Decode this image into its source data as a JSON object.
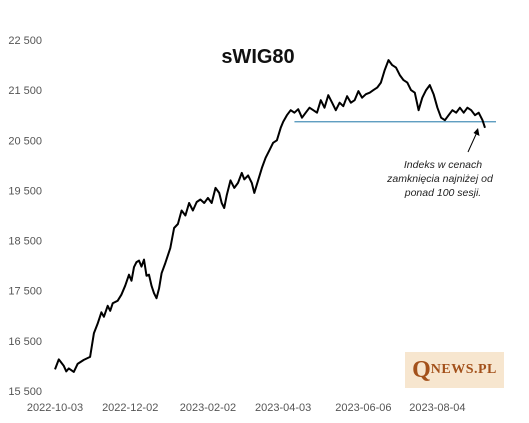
{
  "chart_data": {
    "type": "line",
    "title": "sWIG80",
    "xlabel": "",
    "ylabel": "",
    "ylim": [
      15500,
      22500
    ],
    "y_ticks": [
      15500,
      16500,
      17500,
      18500,
      19500,
      20500,
      21500,
      22500
    ],
    "y_tick_labels": [
      "15 500",
      "16 500",
      "17 500",
      "18 500",
      "19 500",
      "20 500",
      "21 500",
      "22 500"
    ],
    "x_tick_labels": [
      "2022-10-03",
      "2022-12-02",
      "2023-02-02",
      "2023-04-03",
      "2023-06-06",
      "2023-08-04"
    ],
    "grid": false,
    "series": [
      {
        "color": "#000000",
        "points": [
          [
            "2022-10-03",
            15930
          ],
          [
            "2022-10-06",
            16130
          ],
          [
            "2022-10-10",
            16000
          ],
          [
            "2022-10-12",
            15890
          ],
          [
            "2022-10-14",
            15950
          ],
          [
            "2022-10-18",
            15880
          ],
          [
            "2022-10-21",
            16040
          ],
          [
            "2022-10-26",
            16120
          ],
          [
            "2022-10-31",
            16180
          ],
          [
            "2022-11-03",
            16650
          ],
          [
            "2022-11-06",
            16840
          ],
          [
            "2022-11-09",
            17070
          ],
          [
            "2022-11-11",
            16980
          ],
          [
            "2022-11-14",
            17200
          ],
          [
            "2022-11-16",
            17100
          ],
          [
            "2022-11-18",
            17250
          ],
          [
            "2022-11-22",
            17300
          ],
          [
            "2022-11-25",
            17420
          ],
          [
            "2022-11-28",
            17600
          ],
          [
            "2022-12-01",
            17820
          ],
          [
            "2022-12-03",
            17700
          ],
          [
            "2022-12-05",
            17970
          ],
          [
            "2022-12-07",
            18070
          ],
          [
            "2022-12-09",
            18100
          ],
          [
            "2022-12-11",
            17980
          ],
          [
            "2022-12-13",
            18120
          ],
          [
            "2022-12-15",
            17800
          ],
          [
            "2022-12-17",
            17820
          ],
          [
            "2022-12-19",
            17600
          ],
          [
            "2022-12-21",
            17450
          ],
          [
            "2022-12-23",
            17350
          ],
          [
            "2022-12-25",
            17550
          ],
          [
            "2022-12-27",
            17850
          ],
          [
            "2022-12-30",
            18050
          ],
          [
            "2023-01-03",
            18350
          ],
          [
            "2023-01-06",
            18750
          ],
          [
            "2023-01-09",
            18830
          ],
          [
            "2023-01-12",
            19100
          ],
          [
            "2023-01-15",
            19000
          ],
          [
            "2023-01-18",
            19250
          ],
          [
            "2023-01-21",
            19100
          ],
          [
            "2023-01-24",
            19270
          ],
          [
            "2023-01-27",
            19320
          ],
          [
            "2023-01-30",
            19250
          ],
          [
            "2023-02-02",
            19350
          ],
          [
            "2023-02-05",
            19250
          ],
          [
            "2023-02-08",
            19550
          ],
          [
            "2023-02-11",
            19450
          ],
          [
            "2023-02-13",
            19250
          ],
          [
            "2023-02-15",
            19150
          ],
          [
            "2023-02-17",
            19400
          ],
          [
            "2023-02-20",
            19700
          ],
          [
            "2023-02-23",
            19550
          ],
          [
            "2023-02-26",
            19650
          ],
          [
            "2023-03-01",
            19850
          ],
          [
            "2023-03-03",
            19720
          ],
          [
            "2023-03-06",
            19800
          ],
          [
            "2023-03-09",
            19650
          ],
          [
            "2023-03-11",
            19450
          ],
          [
            "2023-03-14",
            19700
          ],
          [
            "2023-03-17",
            19950
          ],
          [
            "2023-03-20",
            20150
          ],
          [
            "2023-03-23",
            20300
          ],
          [
            "2023-03-26",
            20450
          ],
          [
            "2023-03-29",
            20500
          ],
          [
            "2023-04-01",
            20750
          ],
          [
            "2023-04-03",
            20870
          ],
          [
            "2023-04-06",
            21000
          ],
          [
            "2023-04-09",
            21100
          ],
          [
            "2023-04-12",
            21050
          ],
          [
            "2023-04-15",
            21120
          ],
          [
            "2023-04-18",
            20950
          ],
          [
            "2023-04-21",
            21050
          ],
          [
            "2023-04-24",
            21150
          ],
          [
            "2023-04-27",
            21100
          ],
          [
            "2023-04-30",
            21050
          ],
          [
            "2023-05-03",
            21300
          ],
          [
            "2023-05-06",
            21150
          ],
          [
            "2023-05-09",
            21400
          ],
          [
            "2023-05-12",
            21250
          ],
          [
            "2023-05-15",
            21100
          ],
          [
            "2023-05-18",
            21250
          ],
          [
            "2023-05-21",
            21180
          ],
          [
            "2023-05-24",
            21380
          ],
          [
            "2023-05-27",
            21250
          ],
          [
            "2023-05-30",
            21300
          ],
          [
            "2023-06-02",
            21480
          ],
          [
            "2023-06-05",
            21350
          ],
          [
            "2023-06-08",
            21420
          ],
          [
            "2023-06-11",
            21450
          ],
          [
            "2023-06-14",
            21500
          ],
          [
            "2023-06-17",
            21550
          ],
          [
            "2023-06-20",
            21650
          ],
          [
            "2023-06-23",
            21900
          ],
          [
            "2023-06-26",
            22100
          ],
          [
            "2023-06-29",
            22000
          ],
          [
            "2023-07-02",
            21950
          ],
          [
            "2023-07-05",
            21800
          ],
          [
            "2023-07-08",
            21700
          ],
          [
            "2023-07-11",
            21650
          ],
          [
            "2023-07-14",
            21500
          ],
          [
            "2023-07-17",
            21450
          ],
          [
            "2023-07-20",
            21100
          ],
          [
            "2023-07-23",
            21350
          ],
          [
            "2023-07-26",
            21500
          ],
          [
            "2023-07-29",
            21600
          ],
          [
            "2023-08-01",
            21420
          ],
          [
            "2023-08-04",
            21150
          ],
          [
            "2023-08-07",
            20950
          ],
          [
            "2023-08-10",
            20900
          ],
          [
            "2023-08-13",
            21000
          ],
          [
            "2023-08-16",
            21100
          ],
          [
            "2023-08-19",
            21050
          ],
          [
            "2023-08-22",
            21150
          ],
          [
            "2023-08-25",
            21050
          ],
          [
            "2023-08-28",
            21150
          ],
          [
            "2023-08-31",
            21100
          ],
          [
            "2023-09-03",
            21000
          ],
          [
            "2023-09-06",
            21050
          ],
          [
            "2023-09-09",
            20900
          ],
          [
            "2023-09-11",
            20750
          ]
        ]
      }
    ],
    "reference_line": {
      "value": 20870,
      "color": "#4a90b8"
    },
    "annotation": {
      "lines": [
        "Indeks w cenach",
        "zamknięcia najniżej od",
        "ponad  100 sesji."
      ]
    }
  },
  "logo": {
    "q": "Q",
    "rest": "NEWS.PL"
  }
}
